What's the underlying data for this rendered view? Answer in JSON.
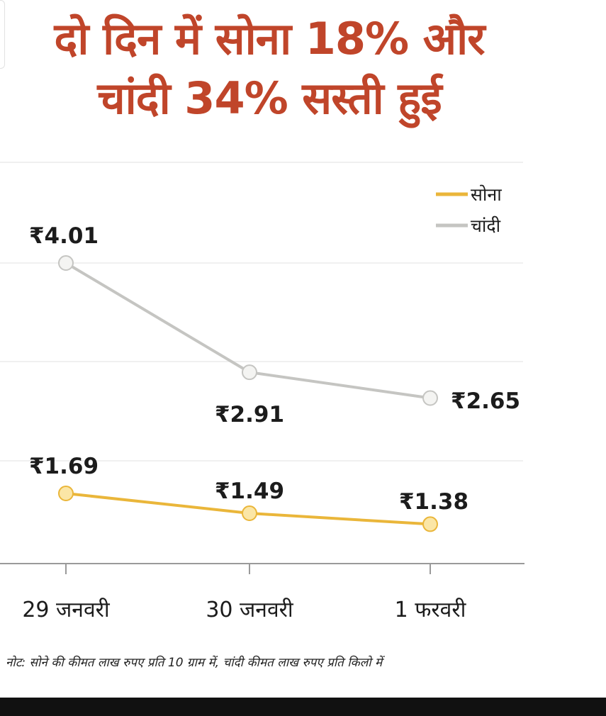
{
  "title_line1": "दो दिन में सोना 18% और",
  "title_line2": "चांदी 34% सस्ती हुई",
  "note": "नोट: सोने की कीमत लाख रुपए प्रति 10 ग्राम में, चांदी कीमत लाख रुपए प्रति किलो में",
  "colors": {
    "title": "#c0452a",
    "gold": "#eab63a",
    "silver": "#c5c5c2"
  },
  "chart_data": {
    "type": "line",
    "title": "",
    "xlabel": "",
    "ylabel": "",
    "categories": [
      "29 जनवरी",
      "30 जनवरी",
      "1 फरवरी"
    ],
    "series": [
      {
        "name": "सोना",
        "values": [
          1.69,
          1.49,
          1.38
        ],
        "labels": [
          "₹1.69",
          "₹1.49",
          "₹1.38"
        ],
        "color": "#eab63a"
      },
      {
        "name": "चांदी",
        "values": [
          4.01,
          2.91,
          2.65
        ],
        "labels": [
          "₹4.01",
          "₹2.91",
          "₹2.65"
        ],
        "color": "#c5c5c2"
      }
    ],
    "grid": true,
    "legend": "top-right"
  }
}
